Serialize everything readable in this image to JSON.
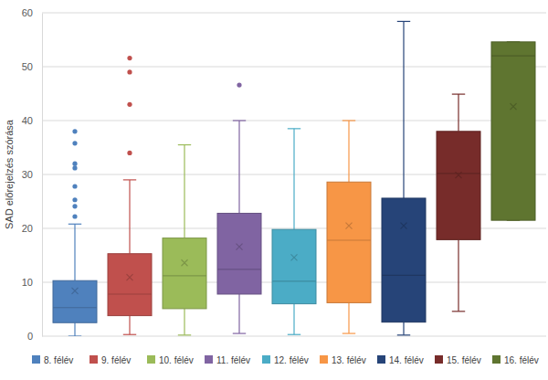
{
  "chart_data": {
    "type": "box",
    "y_label": "SAD előrejelzés szórása",
    "ylim": [
      0,
      60
    ],
    "yticks": [
      0,
      10,
      20,
      30,
      40,
      50,
      60
    ],
    "grid": true,
    "legend": "bottom",
    "series": [
      {
        "name": "8. félév",
        "color": "#4f81bd",
        "whisker_low": 0,
        "q1": 2.5,
        "median": 5.3,
        "q3": 10.3,
        "whisker_high": 20.8,
        "mean": 8.4,
        "outliers": [
          22.2,
          24.1,
          25.3,
          27.8,
          31.2,
          32,
          35.8,
          38
        ]
      },
      {
        "name": "9. félév",
        "color": "#c0504d",
        "whisker_low": 0.3,
        "q1": 3.8,
        "median": 7.8,
        "q3": 15.3,
        "whisker_high": 29,
        "mean": 10.9,
        "outliers": [
          34,
          43,
          49,
          51.6
        ]
      },
      {
        "name": "10. félév",
        "color": "#9bbb59",
        "whisker_low": 0.2,
        "q1": 5.1,
        "median": 11.2,
        "q3": 18.2,
        "whisker_high": 35.5,
        "mean": 13.6,
        "outliers": []
      },
      {
        "name": "11. félév",
        "color": "#8064a2",
        "whisker_low": 0.5,
        "q1": 7.8,
        "median": 12.4,
        "q3": 22.8,
        "whisker_high": 40,
        "mean": 16.6,
        "outliers": [
          46.6
        ]
      },
      {
        "name": "12. félév",
        "color": "#4bacc6",
        "whisker_low": 0.3,
        "q1": 6,
        "median": 10.2,
        "q3": 19.8,
        "whisker_high": 38.5,
        "mean": 14.6,
        "outliers": []
      },
      {
        "name": "13. félév",
        "color": "#f79646",
        "whisker_low": 0.5,
        "q1": 6.2,
        "median": 17.8,
        "q3": 28.6,
        "whisker_high": 40,
        "mean": 20.5,
        "outliers": []
      },
      {
        "name": "14. félév",
        "color": "#264478",
        "whisker_low": 0.2,
        "q1": 2.6,
        "median": 11.3,
        "q3": 25.6,
        "whisker_high": 58.4,
        "mean": 20.5,
        "outliers": []
      },
      {
        "name": "15. félév",
        "color": "#772c2a",
        "whisker_low": 4.6,
        "q1": 17.9,
        "median": 30.2,
        "q3": 38,
        "whisker_high": 44.9,
        "mean": 29.9,
        "outliers": []
      },
      {
        "name": "16. félév",
        "color": "#5f7530",
        "whisker_low": 21.5,
        "q1": 21.5,
        "median": 52,
        "q3": 54.6,
        "whisker_high": 54.6,
        "mean": 42.6,
        "outliers": []
      }
    ]
  }
}
